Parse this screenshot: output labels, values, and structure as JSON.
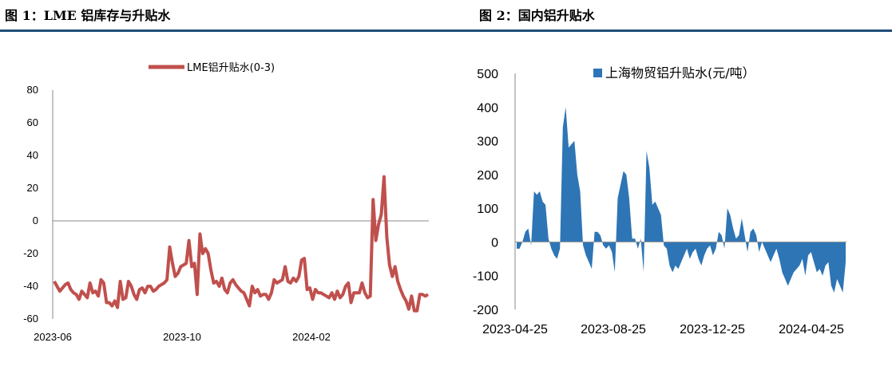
{
  "header": {
    "fig1_title": "图 1：LME 铝库存与升贴水",
    "fig2_title": "图 2：国内铝升贴水",
    "rule_color": "#1f4e79"
  },
  "chart_data": [
    {
      "type": "line",
      "title": "",
      "x_tick_labels": [
        "2023-06",
        "2023-10",
        "2024-02"
      ],
      "y_tick_labels": [
        "80",
        "60",
        "40",
        "20",
        "0",
        "-20",
        "-40",
        "-60"
      ],
      "ylim": [
        -60,
        80
      ],
      "grid": false,
      "legend_position": "top",
      "series": [
        {
          "name": "LME铝升贴水(0-3)",
          "color": "#c0504d",
          "x_range": [
            "2023-06-01",
            "2024-05-15"
          ],
          "values": [
            -37,
            -40,
            -43,
            -41,
            -39,
            -38,
            -42,
            -44,
            -45,
            -48,
            -43,
            -45,
            -47,
            -38,
            -44,
            -43,
            -46,
            -36,
            -38,
            -50,
            -50,
            -52,
            -49,
            -53,
            -37,
            -48,
            -47,
            -37,
            -40,
            -45,
            -48,
            -42,
            -41,
            -44,
            -40,
            -40,
            -43,
            -42,
            -40,
            -39,
            -38,
            -36,
            -16,
            -26,
            -34,
            -32,
            -28,
            -27,
            -26,
            -12,
            -28,
            -26,
            -45,
            -8,
            -20,
            -17,
            -20,
            -30,
            -38,
            -37,
            -40,
            -35,
            -42,
            -44,
            -38,
            -36,
            -39,
            -41,
            -43,
            -44,
            -48,
            -52,
            -40,
            -44,
            -42,
            -46,
            -45,
            -45,
            -48,
            -44,
            -36,
            -38,
            -37,
            -36,
            -28,
            -37,
            -38,
            -35,
            -37,
            -34,
            -24,
            -23,
            -42,
            -41,
            -48,
            -42,
            -44,
            -44,
            -45,
            -46,
            -47,
            -44,
            -48,
            -43,
            -47,
            -45,
            -40,
            -38,
            -50,
            -44,
            -44,
            -44,
            -38,
            -44,
            -47,
            -46,
            13,
            -12,
            -2,
            4,
            27,
            -10,
            -27,
            -34,
            -28,
            -37,
            -42,
            -46,
            -49,
            -54,
            -46,
            -55,
            -55,
            -45,
            -45,
            -46,
            -45
          ],
          "marker_color": "#c0504d"
        }
      ]
    },
    {
      "type": "area",
      "title": "",
      "x_tick_labels": [
        "2023-04-25",
        "2023-08-25",
        "2023-12-25",
        "2024-04-25"
      ],
      "y_tick_labels": [
        "500",
        "400",
        "300",
        "200",
        "100",
        "0",
        "-100",
        "-200"
      ],
      "ylim": [
        -200,
        500
      ],
      "grid": false,
      "legend_position": "top",
      "series": [
        {
          "name": "上海物贸铝升贴水(元/吨）",
          "color": "#2e75b6",
          "x_range": [
            "2023-04-01",
            "2024-05-20"
          ],
          "values": [
            -20,
            -20,
            0,
            30,
            40,
            -10,
            150,
            140,
            150,
            120,
            110,
            10,
            -20,
            -40,
            -50,
            -20,
            340,
            400,
            280,
            290,
            300,
            200,
            150,
            -10,
            -40,
            -60,
            -80,
            30,
            30,
            20,
            -10,
            -20,
            -10,
            -30,
            -90,
            130,
            170,
            210,
            200,
            130,
            10,
            10,
            -20,
            10,
            -90,
            270,
            220,
            110,
            120,
            100,
            80,
            -10,
            -20,
            -70,
            -90,
            -70,
            -80,
            -60,
            -40,
            -20,
            -50,
            -30,
            -20,
            -50,
            -70,
            -40,
            -20,
            -10,
            -40,
            -20,
            30,
            20,
            -20,
            100,
            80,
            40,
            10,
            20,
            70,
            20,
            -30,
            30,
            40,
            20,
            -30,
            0,
            -20,
            -40,
            -60,
            -40,
            -20,
            -50,
            -90,
            -110,
            -130,
            -110,
            -90,
            -80,
            -70,
            -50,
            -100,
            -40,
            -30,
            -60,
            -90,
            -80,
            -100,
            -70,
            -60,
            -130,
            -150,
            -110,
            -130,
            -150,
            -60
          ]
        }
      ]
    }
  ]
}
